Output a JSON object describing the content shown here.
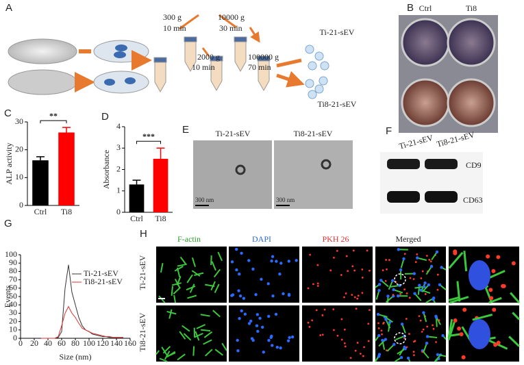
{
  "panels": {
    "A": {
      "letter": "A",
      "steps": [
        {
          "force": "300 g",
          "time": "10 min"
        },
        {
          "force": "2000 g",
          "time": "10 min"
        },
        {
          "force": "10000 g",
          "time": "30 min"
        },
        {
          "force": "100000 g",
          "time": "70 min"
        }
      ],
      "products": [
        "Ti-21-sEV",
        "Ti8-21-sEV"
      ]
    },
    "B": {
      "letter": "B",
      "labels": [
        "Ctrl",
        "Ti8"
      ]
    },
    "C": {
      "letter": "C"
    },
    "D": {
      "letter": "D"
    },
    "E": {
      "letter": "E",
      "labels": [
        "Ti-21-sEV",
        "Ti8-21-sEV"
      ],
      "scale": "300 nm"
    },
    "F": {
      "letter": "F",
      "lanes": [
        "Ti-21-sEV",
        "Ti8-21-sEV"
      ],
      "bands": [
        "CD9",
        "CD63"
      ]
    },
    "G": {
      "letter": "G"
    },
    "H": {
      "letter": "H",
      "columns": [
        "F-actin",
        "DAPI",
        "PKH 26",
        "Merged"
      ],
      "rows": [
        "Ti-21-sEV",
        "Ti8-21-sEV"
      ]
    }
  },
  "chart_data": [
    {
      "type": "bar",
      "ylabel": "ALP activity",
      "categories": [
        "Ctrl",
        "Ti8"
      ],
      "values": [
        16.2,
        26.2
      ],
      "errors": [
        1.3,
        1.8
      ],
      "colors": [
        "#000000",
        "#ff0000"
      ],
      "ylim": [
        0,
        30
      ],
      "yticks": [
        0,
        10,
        20,
        30
      ],
      "annotation": "**"
    },
    {
      "type": "bar",
      "ylabel": "Absorbance",
      "categories": [
        "Ctrl",
        "Ti8"
      ],
      "values": [
        1.3,
        2.5
      ],
      "errors": [
        0.2,
        0.5
      ],
      "colors": [
        "#000000",
        "#ff0000"
      ],
      "ylim": [
        0,
        4
      ],
      "yticks": [
        0,
        1,
        2,
        3,
        4
      ],
      "annotation": "***"
    },
    {
      "type": "line",
      "xlabel": "Size (nm)",
      "ylabel": "Events",
      "x": [
        30,
        35,
        40,
        45,
        50,
        55,
        60,
        65,
        70,
        75,
        80,
        85,
        90,
        95,
        100,
        105,
        110,
        115,
        120,
        125,
        130,
        135,
        140,
        145,
        150
      ],
      "series": [
        {
          "name": "Ti-21-sEV",
          "color": "#333333",
          "values": [
            0,
            0,
            0,
            0,
            0,
            1,
            8,
            60,
            88,
            55,
            40,
            25,
            15,
            10,
            8,
            5,
            4,
            3,
            2,
            2,
            1,
            1,
            1,
            1,
            1
          ]
        },
        {
          "name": "Ti8-21-sEV",
          "color": "#e03030",
          "values": [
            0,
            0,
            0,
            0,
            0,
            2,
            15,
            30,
            38,
            30,
            25,
            18,
            12,
            10,
            8,
            6,
            5,
            4,
            3,
            2,
            2,
            1,
            1,
            1,
            1
          ]
        }
      ],
      "xlim": [
        0,
        160
      ],
      "xticks": [
        0,
        20,
        40,
        60,
        80,
        100,
        120,
        140,
        160
      ],
      "ylim": [
        0,
        100
      ],
      "yticks": [
        0,
        10,
        20,
        30,
        40,
        50,
        60,
        70,
        80,
        90,
        100
      ],
      "legend": "upper right"
    }
  ]
}
